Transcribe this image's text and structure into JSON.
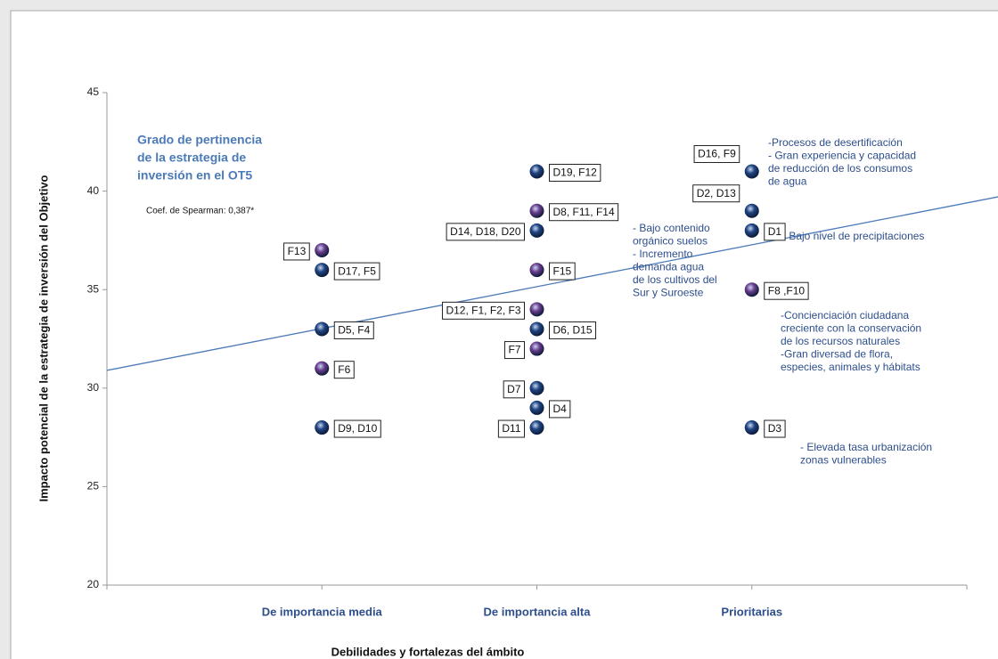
{
  "chart_data": {
    "type": "scatter",
    "title": [
      "Grado de pertinencia",
      "de la estrategia de",
      "inversión en el OT5"
    ],
    "subtitle": "Coef. de Spearman: 0,387*",
    "x_label": "Debilidades y fortalezas del ámbito",
    "y_label": "Impacto potencial de la estrategia de inversión del Objetivo",
    "categories": [
      "De importancia media",
      "De importancia alta",
      "Prioritarias"
    ],
    "ylim": [
      20,
      45
    ],
    "yticks": [
      20,
      25,
      30,
      35,
      40,
      45
    ],
    "grid": false,
    "trendline": {
      "start": 30.9,
      "end": 39.4,
      "color": "#4a7ab8"
    },
    "points": [
      {
        "category": 0,
        "value": 37,
        "label": "F13",
        "color": "#6a3d8f"
      },
      {
        "category": 0,
        "value": 36,
        "label": "D17, F5",
        "color": "#1f4482"
      },
      {
        "category": 0,
        "value": 33,
        "label": "D5, F4",
        "color": "#1f4482"
      },
      {
        "category": 0,
        "value": 31,
        "label": "F6",
        "color": "#6a3d8f"
      },
      {
        "category": 0,
        "value": 28,
        "label": "D9, D10",
        "color": "#1f4482"
      },
      {
        "category": 1,
        "value": 41,
        "label": "D19, F12",
        "color": "#1f4482"
      },
      {
        "category": 1,
        "value": 39,
        "label": "D8, F11, F14",
        "color": "#6a3d8f"
      },
      {
        "category": 1,
        "value": 38,
        "label": "D14, D18, D20",
        "color": "#1f4482"
      },
      {
        "category": 1,
        "value": 36,
        "label": "F15",
        "color": "#6a3d8f"
      },
      {
        "category": 1,
        "value": 34,
        "label": "D12, F1, F2, F3",
        "color": "#6a3d8f"
      },
      {
        "category": 1,
        "value": 33,
        "label": "D6, D15",
        "color": "#1f4482"
      },
      {
        "category": 1,
        "value": 32,
        "label": "F7",
        "color": "#6a3d8f"
      },
      {
        "category": 1,
        "value": 30,
        "label": "D7",
        "color": "#1f4482"
      },
      {
        "category": 1,
        "value": 29,
        "label": "D4",
        "color": "#1f4482"
      },
      {
        "category": 1,
        "value": 28,
        "label": "D11",
        "color": "#1f4482"
      },
      {
        "category": 2,
        "value": 41,
        "label": "D16, F9",
        "color": "#1f4482"
      },
      {
        "category": 2,
        "value": 39,
        "label": "D2, D13",
        "color": "#1f4482"
      },
      {
        "category": 2,
        "value": 38,
        "label": "D1",
        "color": "#1f4482"
      },
      {
        "category": 2,
        "value": 35,
        "label": "F8 ,F10",
        "color": "#6a3d8f"
      },
      {
        "category": 2,
        "value": 28,
        "label": "D3",
        "color": "#1f4482"
      }
    ],
    "annotations": [
      {
        "lines": [
          "- Bajo contenido",
          "orgánico suelos",
          "- Incremento",
          "demanda agua",
          "de los cultivos del",
          "Sur y Suroeste"
        ]
      },
      {
        "lines": [
          "-Procesos de desertificación",
          "- Gran experiencia y capacidad",
          "de reducción de los consumos",
          "de agua"
        ]
      },
      {
        "lines": [
          "- Bajo nivel de precipitaciones"
        ]
      },
      {
        "lines": [
          "-Concienciación ciudadana",
          "creciente con la conservación",
          "de los recursos naturales",
          "-Gran diversad de flora,",
          "especies, animales y hábitats"
        ]
      },
      {
        "lines": [
          "- Elevada tasa urbanización",
          "zonas vulnerables"
        ]
      }
    ]
  }
}
